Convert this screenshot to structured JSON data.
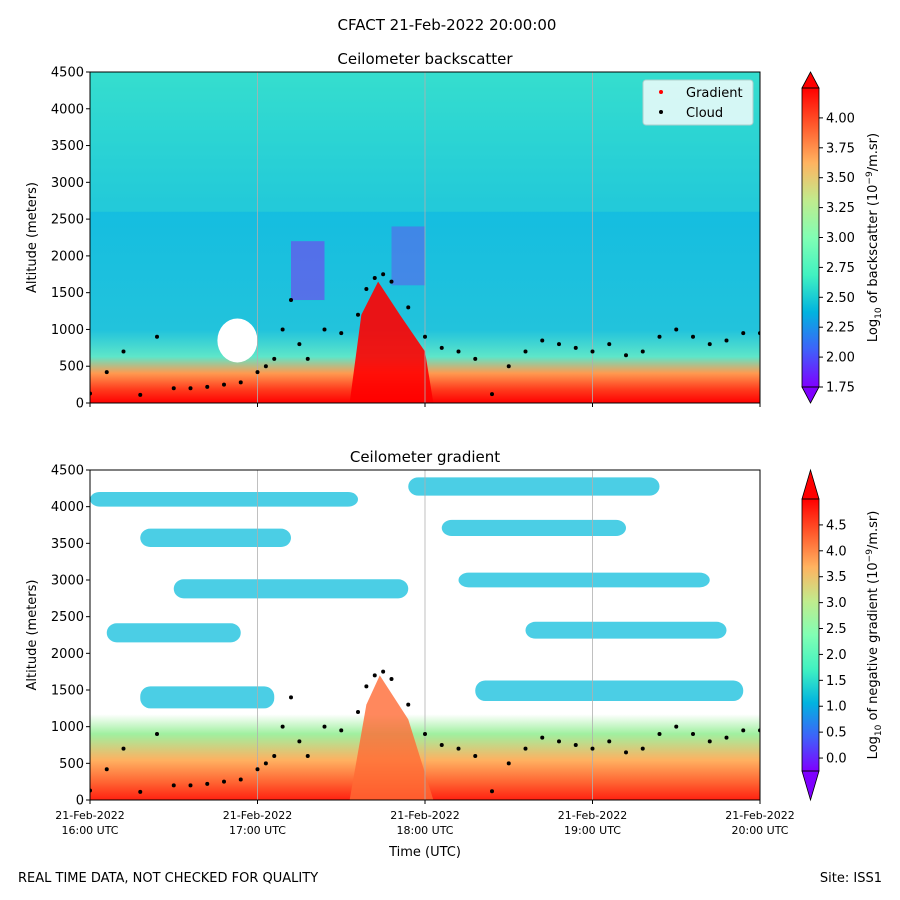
{
  "figure": {
    "suptitle": "CFACT 21-Feb-2022 20:00:00",
    "footer_left": "REAL TIME DATA, NOT CHECKED FOR QUALITY",
    "footer_right": "Site: ISS1"
  },
  "colors": {
    "rainbow": [
      "#7f00ff",
      "#3f61fa",
      "#01b3df",
      "#41f2c1",
      "#81feb4",
      "#c1eb8d",
      "#ffb360",
      "#ff5a2c",
      "#ff0000"
    ],
    "gradient_marker": "#ff0000",
    "cloud_marker": "#000000"
  },
  "chart_data": [
    {
      "type": "heatmap",
      "title": "Ceilometer backscatter",
      "ylabel": "Altitude (meters)",
      "xlim": [
        16.0,
        20.0
      ],
      "ylim": [
        0,
        4500
      ],
      "yticks": [
        0,
        500,
        1000,
        1500,
        2000,
        2500,
        3000,
        3500,
        4000,
        4500
      ],
      "ytick_labels": [
        "0",
        "500",
        "1000",
        "1500",
        "2000",
        "2500",
        "3000",
        "3500",
        "4000",
        "4500"
      ],
      "xgrid": [
        17.0,
        18.0,
        19.0
      ],
      "colorbar": {
        "label_prefix": "Log",
        "label_sub": "10",
        "label_mid": " of backscatter (10",
        "label_sup": "−9",
        "label_suffix": "/m.sr)",
        "range": [
          1.75,
          4.25
        ],
        "ticks": [
          1.75,
          2.0,
          2.25,
          2.5,
          2.75,
          3.0,
          3.25,
          3.5,
          3.75,
          4.0
        ],
        "tick_labels": [
          "1.75",
          "2.00",
          "2.25",
          "2.50",
          "2.75",
          "3.00",
          "3.25",
          "3.50",
          "3.75",
          "4.00"
        ],
        "extend": "both"
      },
      "legend": {
        "location": "top-right",
        "entries": [
          {
            "name": "Gradient",
            "color": "#ff0000"
          },
          {
            "name": "Cloud",
            "color": "#000000"
          }
        ]
      }
    },
    {
      "type": "heatmap",
      "title": "Ceilometer gradient",
      "ylabel": "Altitude (meters)",
      "xlabel": "Time (UTC)",
      "xlim": [
        16.0,
        20.0
      ],
      "ylim": [
        0,
        4500
      ],
      "yticks": [
        0,
        500,
        1000,
        1500,
        2000,
        2500,
        3000,
        3500,
        4000,
        4500
      ],
      "ytick_labels": [
        "0",
        "500",
        "1000",
        "1500",
        "2000",
        "2500",
        "3000",
        "3500",
        "4000",
        "4500"
      ],
      "xticks": [
        16.0,
        17.0,
        18.0,
        19.0,
        20.0
      ],
      "xtick_labels": [
        [
          "21-Feb-2022",
          "16:00 UTC"
        ],
        [
          "21-Feb-2022",
          "17:00 UTC"
        ],
        [
          "21-Feb-2022",
          "18:00 UTC"
        ],
        [
          "21-Feb-2022",
          "19:00 UTC"
        ],
        [
          "21-Feb-2022",
          "20:00 UTC"
        ]
      ],
      "xgrid": [
        17.0,
        18.0,
        19.0
      ],
      "colorbar": {
        "label_prefix": "Log",
        "label_sub": "10",
        "label_mid": " of negative gradient (10",
        "label_sup": "−9",
        "label_suffix": "/m.sr)",
        "range": [
          -0.25,
          5.0
        ],
        "ticks": [
          0.0,
          0.5,
          1.0,
          1.5,
          2.0,
          2.5,
          3.0,
          3.5,
          4.0,
          4.5
        ],
        "tick_labels": [
          "0.0",
          "0.5",
          "1.0",
          "1.5",
          "2.0",
          "2.5",
          "3.0",
          "3.5",
          "4.0",
          "4.5"
        ],
        "extend": "both"
      }
    }
  ],
  "series": {
    "cloud_base": {
      "name": "Cloud",
      "time_hours": [
        16.0,
        16.1,
        16.2,
        16.3,
        16.4,
        16.5,
        16.6,
        16.7,
        16.8,
        16.9,
        17.0,
        17.05,
        17.1,
        17.15,
        17.2,
        17.25,
        17.3,
        17.4,
        17.5,
        17.6,
        17.65,
        17.7,
        17.75,
        17.8,
        17.9,
        18.0,
        18.1,
        18.2,
        18.3,
        18.4,
        18.5,
        18.6,
        18.7,
        18.8,
        18.9,
        19.0,
        19.1,
        19.2,
        19.3,
        19.4,
        19.5,
        19.6,
        19.7,
        19.8,
        19.9,
        20.0
      ],
      "altitude_m": [
        130,
        420,
        700,
        110,
        900,
        200,
        200,
        220,
        250,
        280,
        420,
        500,
        600,
        1000,
        1400,
        800,
        600,
        1000,
        950,
        1200,
        1550,
        1700,
        1750,
        1650,
        1300,
        900,
        750,
        700,
        600,
        120,
        500,
        700,
        850,
        800,
        750,
        700,
        800,
        650,
        700,
        900,
        1000,
        900,
        800,
        850,
        950,
        950
      ]
    }
  }
}
